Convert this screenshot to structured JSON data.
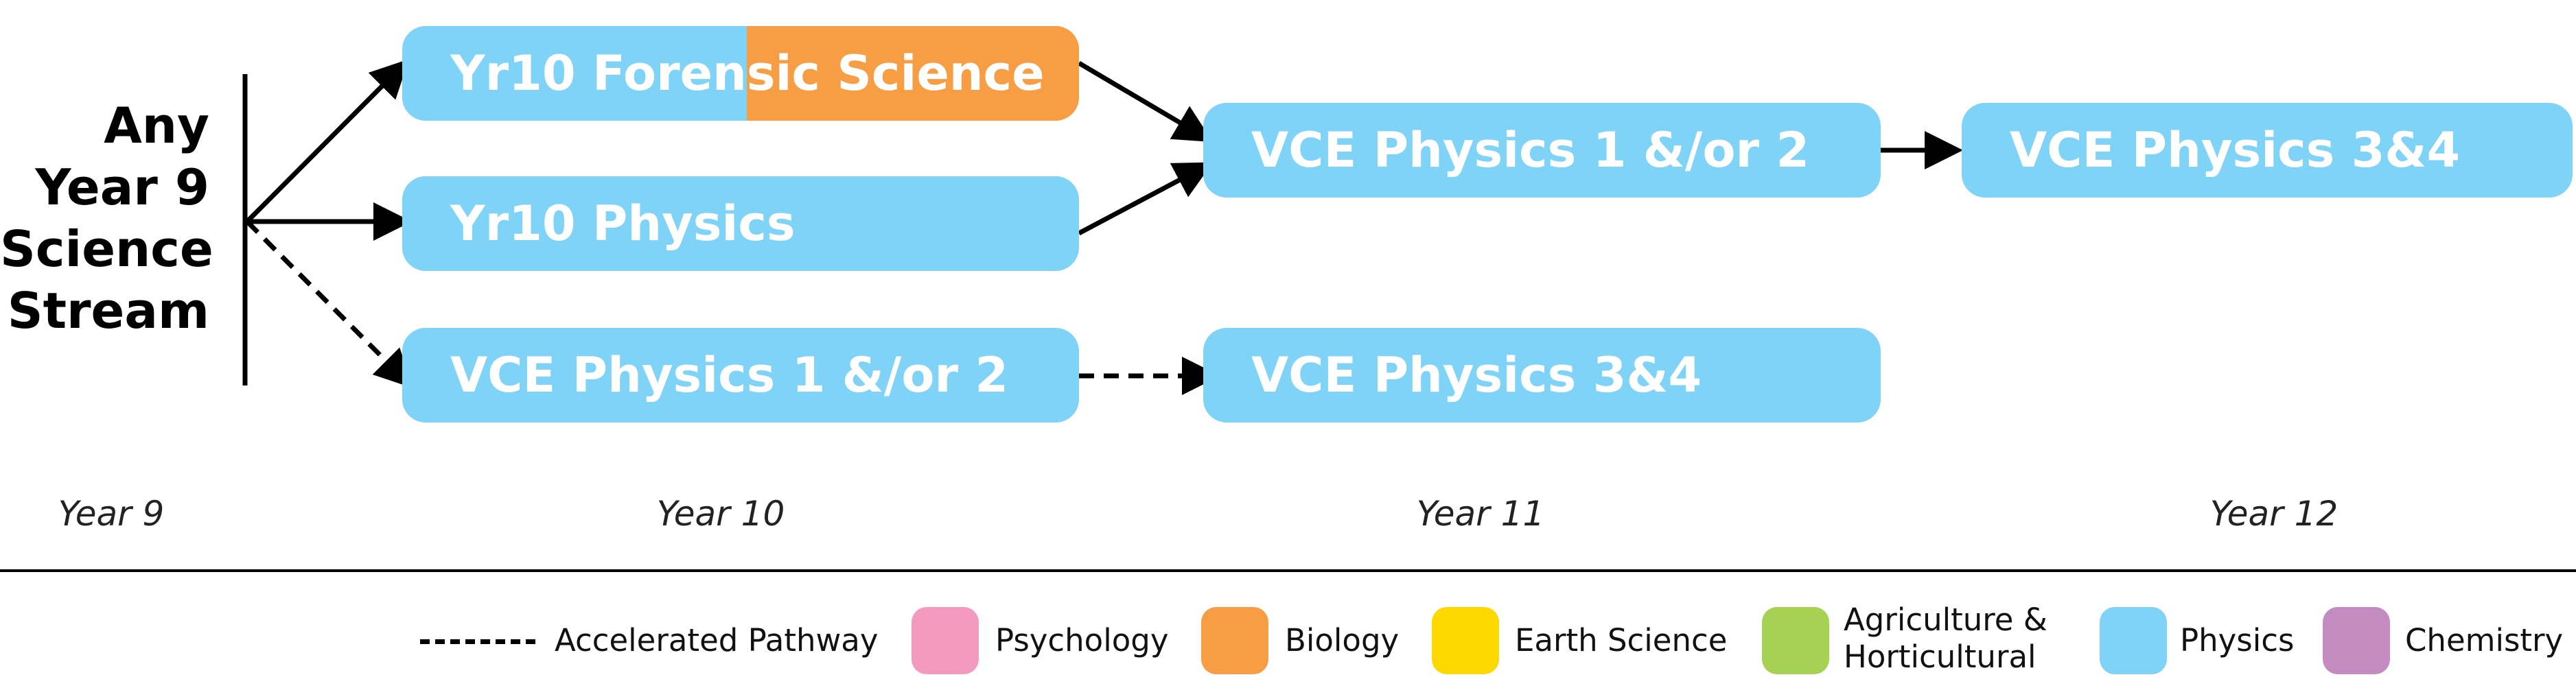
{
  "start": {
    "lines": [
      "Any",
      "Year 9",
      "Science",
      "Stream"
    ]
  },
  "boxes": {
    "yr10_forensic": "Yr10 Forensic Science",
    "yr10_physics": "Yr10 Physics",
    "vce12_accel": "VCE Physics 1 &/or 2",
    "vce12_y11": "VCE Physics 1 &/or 2",
    "vce34_y12": "VCE Physics 3&4",
    "vce34_accel": "VCE Physics 3&4"
  },
  "years": [
    "Year 9",
    "Year 10",
    "Year 11",
    "Year 12"
  ],
  "legend": {
    "accelerated": "Accelerated Pathway",
    "psychology": "Psychology",
    "biology": "Biology",
    "earth_science": "Earth Science",
    "agri_line1": "Agriculture &",
    "agri_line2": "Horticultural",
    "physics": "Physics",
    "chemistry": "Chemistry"
  },
  "colors": {
    "physics": "#7fd3f7",
    "biology": "#f79d43",
    "psychology": "#f49ac1",
    "earth_science": "#fdd900",
    "agriculture": "#a5d252",
    "chemistry": "#c38bbf"
  }
}
